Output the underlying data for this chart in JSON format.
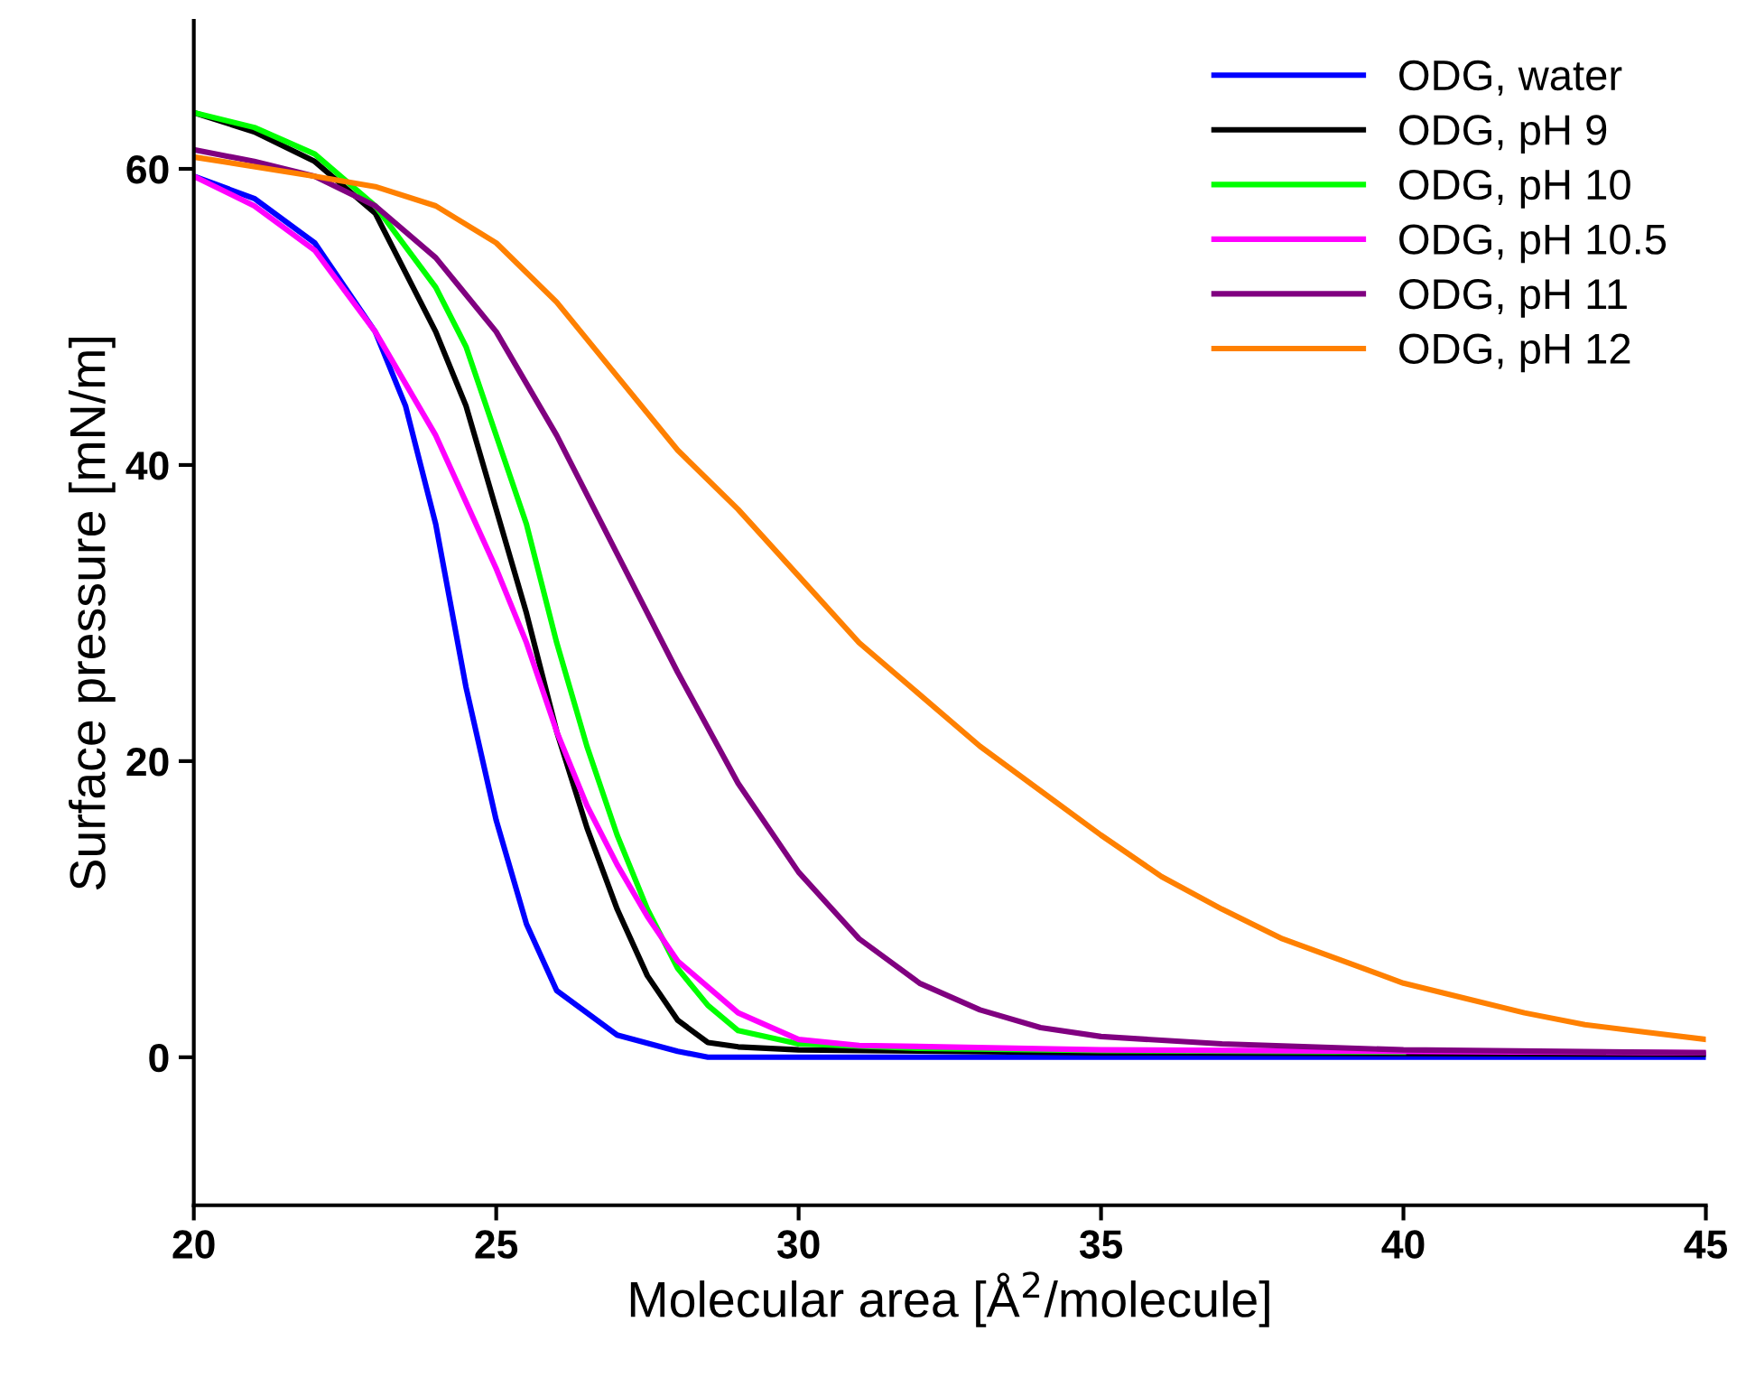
{
  "chart_data": {
    "type": "line",
    "xlabel": "Molecular area [Å$^{2}$/molecule]",
    "ylabel": "Surface pressure [mN/m]",
    "xlim": [
      20,
      45
    ],
    "ylim": [
      -10,
      70
    ],
    "xticks": [
      20,
      25,
      30,
      35,
      40,
      45
    ],
    "yticks": [
      0,
      20,
      40,
      60
    ],
    "legend": "top right",
    "grid": false,
    "marker": "none",
    "line_style": "solid",
    "series": [
      {
        "name": "ODG, water",
        "color": "#0000ff",
        "x": [
          20,
          21,
          22,
          23,
          23.5,
          24,
          24.5,
          25,
          25.5,
          26,
          27,
          28,
          28.5,
          30,
          45
        ],
        "values": [
          59.5,
          58,
          55,
          49,
          44,
          36,
          25,
          16,
          9,
          4.5,
          1.5,
          0.4,
          0,
          0,
          0
        ]
      },
      {
        "name": "ODG, pH 9",
        "color": "#000000",
        "x": [
          20,
          21,
          22,
          23,
          24,
          24.5,
          25,
          25.5,
          26,
          26.5,
          27,
          27.5,
          28,
          28.5,
          29,
          30,
          35,
          45
        ],
        "values": [
          63.8,
          62.5,
          60.5,
          57,
          49,
          44,
          37,
          30,
          22,
          15.5,
          10,
          5.5,
          2.5,
          1,
          0.7,
          0.5,
          0.3,
          0.2
        ]
      },
      {
        "name": "ODG, pH 10",
        "color": "#00ff00",
        "x": [
          20,
          21,
          22,
          23,
          24,
          24.5,
          25,
          25.5,
          26,
          26.5,
          27,
          27.5,
          28,
          28.5,
          29,
          30,
          32,
          35,
          40
        ],
        "values": [
          63.8,
          62.8,
          61,
          57.5,
          52,
          48,
          42,
          36,
          28,
          21,
          15,
          10,
          6,
          3.5,
          1.8,
          0.9,
          0.6,
          0.45,
          0.35
        ]
      },
      {
        "name": "ODG, pH 10.5",
        "color": "#ff00ff",
        "x": [
          20,
          21,
          22,
          23,
          24,
          25,
          25.5,
          26,
          26.5,
          27,
          27.5,
          28,
          29,
          30,
          31,
          35,
          45
        ],
        "values": [
          59.5,
          57.5,
          54.5,
          49,
          42,
          33,
          28,
          22,
          17,
          13,
          9.5,
          6.5,
          3,
          1.2,
          0.8,
          0.5,
          0.3
        ]
      },
      {
        "name": "ODG, pH 11",
        "color": "#800080",
        "x": [
          20,
          21,
          22,
          23,
          24,
          25,
          26,
          27,
          28,
          29,
          30,
          31,
          32,
          33,
          34,
          35,
          37,
          40,
          45
        ],
        "values": [
          61.3,
          60.5,
          59.5,
          57.5,
          54,
          49,
          42,
          34,
          26,
          18.5,
          12.5,
          8,
          5,
          3.2,
          2,
          1.4,
          0.9,
          0.5,
          0.3
        ]
      },
      {
        "name": "ODG, pH 12",
        "color": "#ff8000",
        "x": [
          20,
          22,
          23,
          24,
          25,
          26,
          27,
          28,
          29,
          30,
          31,
          32,
          33,
          34,
          35,
          36,
          37,
          38,
          39,
          40,
          41,
          42,
          43,
          44,
          45
        ],
        "values": [
          60.8,
          59.5,
          58.8,
          57.5,
          55,
          51,
          46,
          41,
          37,
          32.5,
          28,
          24.5,
          21,
          18,
          15,
          12.2,
          10,
          8,
          6.5,
          5,
          4,
          3,
          2.2,
          1.7,
          1.2
        ]
      }
    ]
  }
}
